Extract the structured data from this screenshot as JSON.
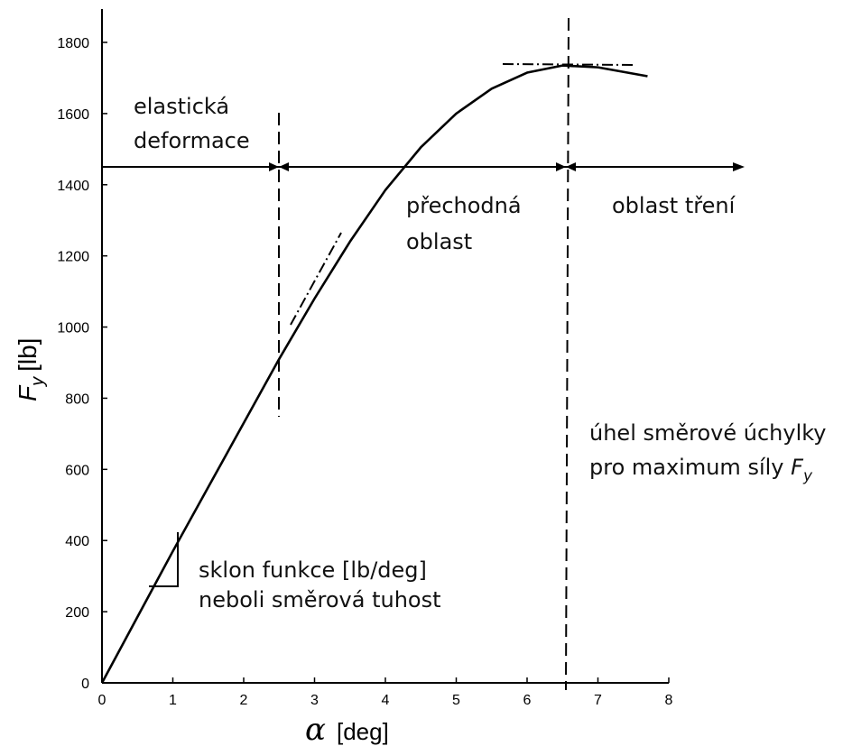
{
  "chart_data": {
    "type": "line",
    "x_label": {
      "symbol": "α",
      "unit": "[deg]"
    },
    "y_label": {
      "symbol": "F",
      "subscript": "y",
      "unit": "[lb]"
    },
    "x": [
      0,
      0.5,
      1,
      1.5,
      2,
      2.5,
      3,
      3.5,
      4,
      4.5,
      5,
      5.5,
      6,
      6.5,
      7,
      7.7
    ],
    "series": [
      {
        "color": "#000000",
        "values": [
          0,
          185,
          370,
          550,
          730,
          910,
          1080,
          1240,
          1385,
          1505,
          1600,
          1670,
          1715,
          1735,
          1730,
          1705
        ]
      }
    ],
    "xlim": [
      0,
      8
    ],
    "xticks": [
      0,
      1,
      2,
      3,
      4,
      5,
      6,
      7,
      8
    ],
    "ylim": [
      0,
      1800
    ],
    "yticks": [
      0,
      200,
      400,
      600,
      800,
      1000,
      1200,
      1400,
      1600,
      1800
    ],
    "grid": false,
    "annotations": {
      "elastic": [
        "elastická",
        "deformace"
      ],
      "transition": [
        "přechodná",
        "oblast"
      ],
      "friction": "oblast tření",
      "max_angle": [
        "úhel směrové úchylky",
        "pro maximum síly"
      ],
      "max_force_symbol": {
        "symbol": "F",
        "subscript": "y"
      },
      "slope": [
        "sklon funkce [lb/deg]",
        "neboli směrová tuhost"
      ]
    }
  }
}
